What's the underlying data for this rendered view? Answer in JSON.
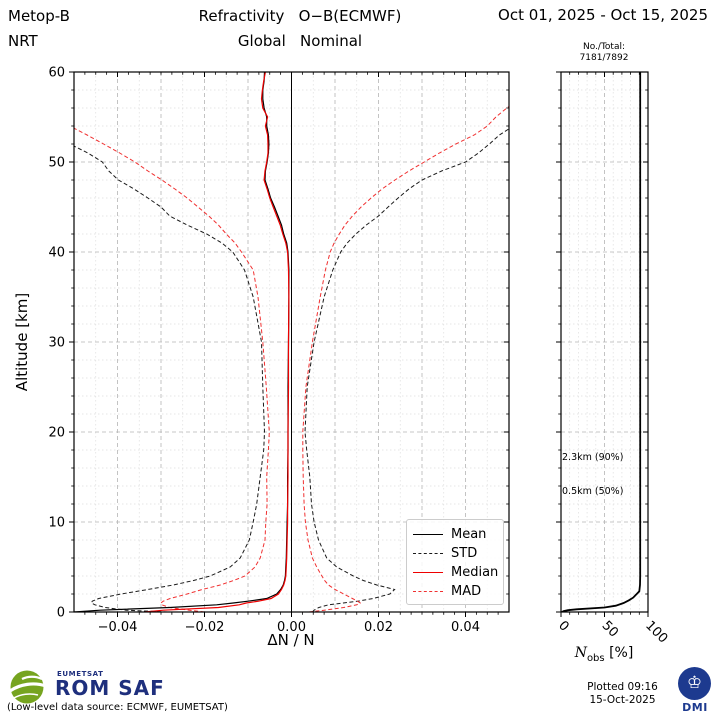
{
  "header": {
    "satellite": "Metop-B",
    "mode": "NRT",
    "title_line1": "Refractivity   O−B(ECMWF)",
    "title_line2": "Global   Nominal",
    "date_range": "Oct 01, 2025 - Oct 15, 2025"
  },
  "right_panel": {
    "counts_label": "No./Total:",
    "counts_value": "7181/7892",
    "annotations": [
      {
        "text": "2.3km  (90%)"
      },
      {
        "text": "0.5km  (50%)"
      }
    ],
    "xlabel_main": "N",
    "xlabel_sub": "obs",
    "xlabel_unit": " [%]"
  },
  "legend": [
    {
      "label": "Mean"
    },
    {
      "label": "STD"
    },
    {
      "label": "Median"
    },
    {
      "label": "MAD"
    }
  ],
  "footer": {
    "logo_top": "EUMETSAT",
    "logo_main": "ROM SAF",
    "source_note": "(Low-level data source: ECMWF, EUMETSAT)",
    "plotted_line1": "Plotted 09:16",
    "plotted_line2": "15-Oct-2025",
    "dmi_label": "DMI"
  },
  "colors": {
    "black_line": "#000000",
    "red_line": "#ee0000",
    "std_dash": "#1a1a1a",
    "mad_dash": "#f03030",
    "grid_major": "#b5b5b5",
    "grid_minor": "#dedede",
    "navy": "#1e2f7d",
    "logo_green": "#76a41f"
  },
  "chart_data": {
    "type": "line",
    "title": "Refractivity O−B(ECMWF) Global Nominal, Metop-B NRT, Oct 01, 2025 - Oct 15, 2025",
    "xlabel": "ΔN / N",
    "ylabel": "Altitude [km]",
    "xlim": [
      -0.05,
      0.05
    ],
    "ylim": [
      0,
      60
    ],
    "grid": "on",
    "xticks": [
      {
        "v": -0.04,
        "label": "−0.04"
      },
      {
        "v": -0.02,
        "label": "−0.02"
      },
      {
        "v": 0,
        "label": "0.00"
      },
      {
        "v": 0.02,
        "label": "0.02"
      },
      {
        "v": 0.04,
        "label": "0.04"
      }
    ],
    "yticks": [
      {
        "v": 0,
        "label": "0"
      },
      {
        "v": 10,
        "label": "10"
      },
      {
        "v": 20,
        "label": "20"
      },
      {
        "v": 30,
        "label": "30"
      },
      {
        "v": 40,
        "label": "40"
      },
      {
        "v": 50,
        "label": "50"
      },
      {
        "v": 60,
        "label": "60"
      }
    ],
    "altitudes": [
      0,
      0.2,
      0.5,
      0.8,
      1,
      1.2,
      1.5,
      2,
      2.5,
      3,
      3.5,
      4,
      5,
      6,
      8,
      10,
      12,
      15,
      18,
      20,
      25,
      30,
      35,
      38,
      40,
      41,
      42,
      43,
      44,
      45,
      46,
      47,
      48,
      49,
      50,
      51,
      52,
      53,
      54,
      55,
      56,
      57,
      58,
      59,
      60
    ],
    "series": [
      {
        "name": "STD-",
        "legend": "STD",
        "style": "dashed",
        "color": "#1a1a1a",
        "width": 1,
        "values": [
          -0.0285,
          -0.038,
          -0.0428,
          -0.0452,
          -0.046,
          -0.0458,
          -0.0443,
          -0.0392,
          -0.033,
          -0.0272,
          -0.0225,
          -0.0187,
          -0.0141,
          -0.0118,
          -0.0097,
          -0.0088,
          -0.008,
          -0.0072,
          -0.0064,
          -0.0062,
          -0.0066,
          -0.0069,
          -0.0088,
          -0.0108,
          -0.0135,
          -0.016,
          -0.0195,
          -0.024,
          -0.028,
          -0.03,
          -0.033,
          -0.0362,
          -0.0398,
          -0.042,
          -0.0435,
          -0.0468,
          -0.051,
          -0.055,
          -0.059,
          -0.063,
          -0.067,
          -0.071,
          -0.075,
          -0.079,
          -0.083
        ]
      },
      {
        "name": "STD+",
        "legend": "STD",
        "style": "dashed",
        "color": "#1a1a1a",
        "width": 1,
        "values": [
          0.0048,
          0.0052,
          0.0063,
          0.0085,
          0.0119,
          0.0152,
          0.0188,
          0.0226,
          0.0237,
          0.0196,
          0.0165,
          0.0142,
          0.0104,
          0.0081,
          0.0062,
          0.0052,
          0.0046,
          0.0042,
          0.0035,
          0.0031,
          0.0036,
          0.0052,
          0.0075,
          0.0095,
          0.0113,
          0.0128,
          0.0148,
          0.0172,
          0.02,
          0.0222,
          0.0245,
          0.027,
          0.03,
          0.0345,
          0.04,
          0.043,
          0.0455,
          0.0478,
          0.051,
          0.055,
          0.06,
          0.064,
          0.068,
          0.072,
          0.076
        ]
      },
      {
        "name": "MAD-",
        "legend": "MAD",
        "style": "dashed",
        "color": "#f03030",
        "width": 1,
        "values": [
          -0.02,
          -0.0235,
          -0.028,
          -0.0298,
          -0.03,
          -0.0295,
          -0.0279,
          -0.024,
          -0.0205,
          -0.0164,
          -0.0133,
          -0.0107,
          -0.0084,
          -0.0072,
          -0.0061,
          -0.0059,
          -0.0056,
          -0.0057,
          -0.0053,
          -0.0051,
          -0.0058,
          -0.0066,
          -0.0077,
          -0.0088,
          -0.0115,
          -0.013,
          -0.015,
          -0.0168,
          -0.019,
          -0.0215,
          -0.024,
          -0.0268,
          -0.0298,
          -0.033,
          -0.036,
          -0.0395,
          -0.0432,
          -0.047,
          -0.051,
          -0.055,
          -0.059,
          -0.063,
          -0.067,
          -0.071,
          -0.075
        ]
      },
      {
        "name": "MAD+",
        "legend": "MAD",
        "style": "dashed",
        "color": "#f03030",
        "width": 1,
        "values": [
          0.004,
          0.0075,
          0.012,
          0.015,
          0.0158,
          0.0152,
          0.014,
          0.012,
          0.01,
          0.0085,
          0.0076,
          0.007,
          0.0058,
          0.0048,
          0.0038,
          0.0032,
          0.0029,
          0.0027,
          0.0026,
          0.0026,
          0.0033,
          0.0048,
          0.0066,
          0.0078,
          0.0089,
          0.0098,
          0.011,
          0.0123,
          0.014,
          0.016,
          0.0183,
          0.0208,
          0.0238,
          0.027,
          0.0305,
          0.034,
          0.0378,
          0.042,
          0.045,
          0.047,
          0.0495,
          0.0525,
          0.056,
          0.06,
          0.064
        ]
      },
      {
        "name": "Mean",
        "legend": "Mean",
        "style": "solid",
        "color": "#000000",
        "width": 1.2,
        "values": [
          -0.05,
          -0.044,
          -0.028,
          -0.0172,
          -0.0134,
          -0.01,
          -0.0057,
          -0.0034,
          -0.0025,
          -0.0019,
          -0.0016,
          -0.0014,
          -0.0013,
          -0.0012,
          -0.0011,
          -0.001,
          -0.0009,
          -0.0009,
          -0.0008,
          -0.0008,
          -0.0008,
          -0.0007,
          -0.0006,
          -0.0006,
          -0.0008,
          -0.0011,
          -0.0018,
          -0.0023,
          -0.0031,
          -0.0039,
          -0.0048,
          -0.0054,
          -0.0061,
          -0.006,
          -0.0056,
          -0.0053,
          -0.0052,
          -0.0053,
          -0.0057,
          -0.0057,
          -0.0063,
          -0.0066,
          -0.0066,
          -0.0063,
          -0.0062
        ]
      },
      {
        "name": "Median",
        "legend": "Median",
        "style": "solid",
        "color": "#ee0000",
        "width": 1.2,
        "values": [
          -0.0337,
          -0.0295,
          -0.0168,
          -0.012,
          -0.0104,
          -0.0076,
          -0.0047,
          -0.003,
          -0.0023,
          -0.0018,
          -0.0015,
          -0.0013,
          -0.0012,
          -0.0011,
          -0.001,
          -0.0009,
          -0.0009,
          -0.0008,
          -0.0008,
          -0.0008,
          -0.0007,
          -0.0007,
          -0.0006,
          -0.0007,
          -0.0009,
          -0.0013,
          -0.002,
          -0.0026,
          -0.0034,
          -0.0042,
          -0.005,
          -0.0056,
          -0.0063,
          -0.0061,
          -0.0057,
          -0.0054,
          -0.0054,
          -0.0055,
          -0.006,
          -0.0055,
          -0.0066,
          -0.0069,
          -0.0067,
          -0.0064,
          -0.006
        ]
      }
    ],
    "nobs_panel": {
      "type": "line",
      "xlabel": "Nobs [%]",
      "xlim": [
        0,
        100
      ],
      "xticks": [
        {
          "v": 0,
          "label": "0"
        },
        {
          "v": 50,
          "label": "50"
        },
        {
          "v": 100,
          "label": "100"
        }
      ],
      "counts": "7181/7892",
      "altitudes": [
        0,
        0.1,
        0.2,
        0.3,
        0.5,
        0.7,
        1,
        1.3,
        1.6,
        2,
        2.3,
        2.7,
        3,
        4,
        5,
        10,
        20,
        30,
        40,
        50,
        60
      ],
      "values_pct": [
        1,
        3,
        8,
        18,
        50,
        63,
        72,
        78,
        83,
        87,
        90,
        90.5,
        90.8,
        91,
        91,
        91,
        91,
        91,
        91,
        91,
        91
      ],
      "annotations": [
        "2.3km (90%)",
        "0.5km (50%)"
      ]
    }
  }
}
